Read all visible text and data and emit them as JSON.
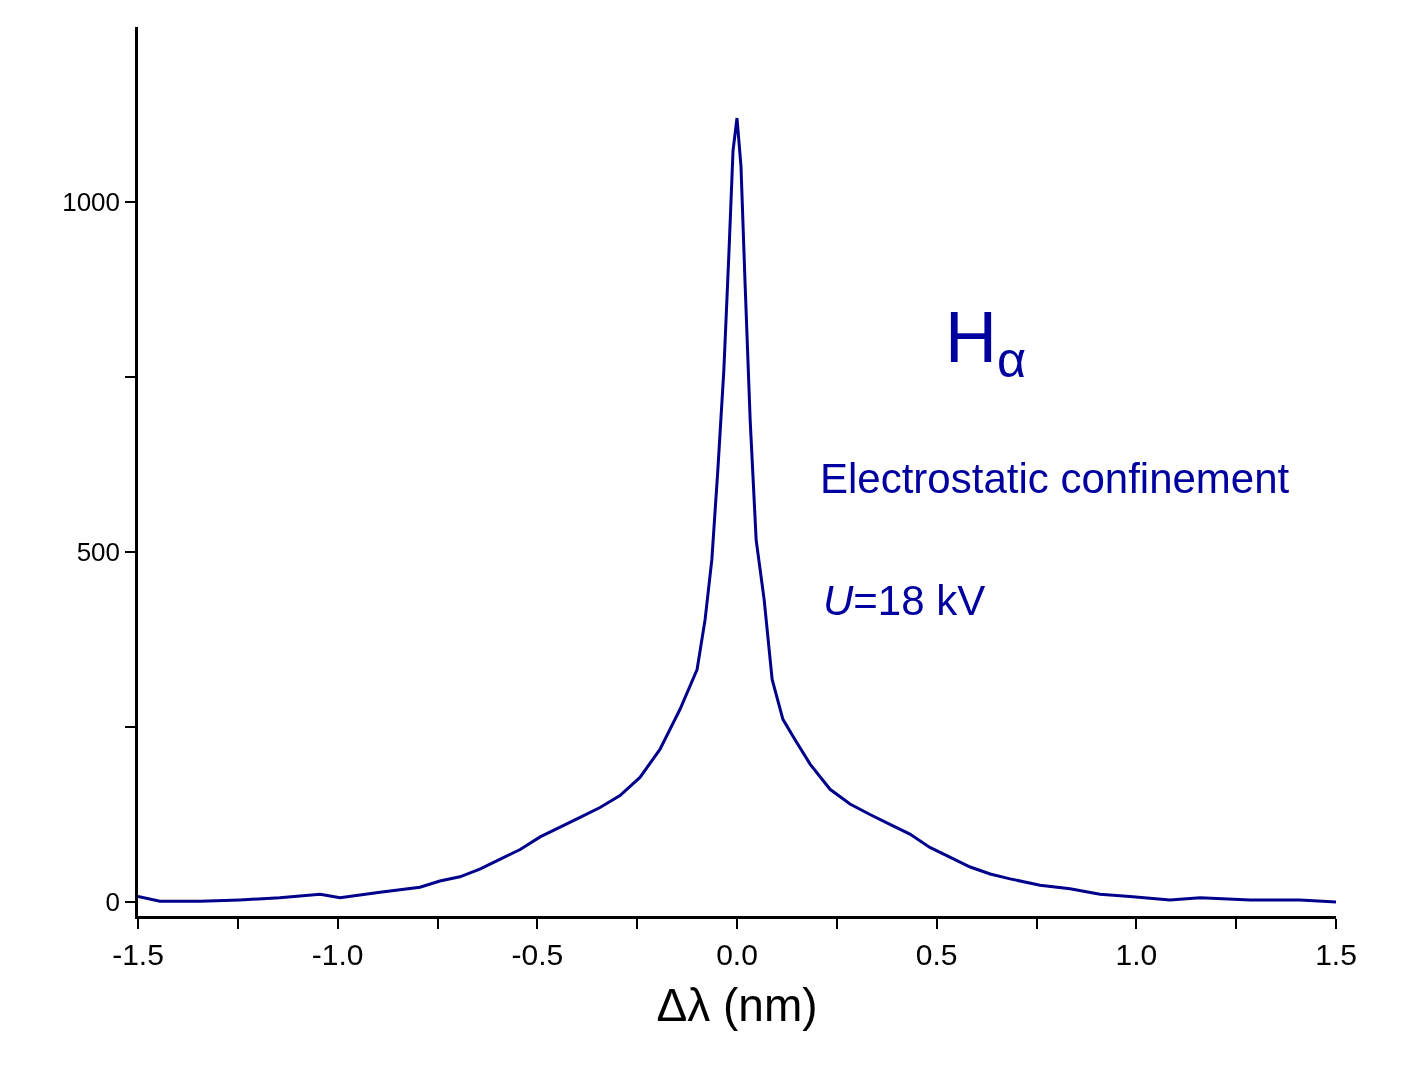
{
  "chart_data": {
    "type": "line",
    "xlabel": "Δλ (nm)",
    "x": [
      -1.5,
      -1.445,
      -1.345,
      -1.245,
      -1.145,
      -1.044,
      -0.994,
      -0.894,
      -0.794,
      -0.744,
      -0.694,
      -0.644,
      -0.594,
      -0.543,
      -0.493,
      -0.443,
      -0.393,
      -0.343,
      -0.293,
      -0.243,
      -0.193,
      -0.143,
      -0.1,
      -0.08,
      -0.063,
      -0.048,
      -0.033,
      -0.02,
      -0.01,
      0,
      0.01,
      0.02,
      0.033,
      0.048,
      0.068,
      0.088,
      0.115,
      0.145,
      0.183,
      0.233,
      0.283,
      0.333,
      0.383,
      0.433,
      0.483,
      0.533,
      0.584,
      0.634,
      0.684,
      0.759,
      0.834,
      0.909,
      0.984,
      1.084,
      1.16,
      1.285,
      1.41,
      1.5
    ],
    "series": [
      {
        "color": "#00008b",
        "values": [
          8,
          1,
          1,
          3,
          6,
          11,
          6,
          14,
          21,
          30,
          36,
          47,
          61,
          75,
          93,
          107,
          121,
          135,
          152,
          178,
          218,
          275,
          332,
          403,
          489,
          617,
          759,
          930,
          1073,
          1120,
          1051,
          887,
          688,
          517,
          432,
          318,
          261,
          232,
          197,
          161,
          140,
          125,
          111,
          97,
          78,
          64,
          50,
          40,
          33,
          24,
          19,
          11,
          8,
          3,
          6,
          3,
          3,
          0
        ]
      }
    ],
    "xlim": [
      -1.5,
      1.5
    ],
    "ylim": [
      -20,
      1250
    ],
    "xticks": [
      -1.5,
      {
        "value": -1.25,
        "label": null
      },
      "-1.0",
      {
        "value": -0.75,
        "label": null
      },
      -0.5,
      {
        "value": -0.25,
        "label": null
      },
      "0.0",
      {
        "value": 0.25,
        "label": null
      },
      0.5,
      {
        "value": 0.75,
        "label": null
      },
      "1.0",
      {
        "value": 1.25,
        "label": null
      },
      1.5
    ],
    "yticks": [
      0,
      {
        "value": 250,
        "label": null
      },
      500,
      {
        "value": 750,
        "label": null
      },
      1000
    ],
    "annotations": [
      "H$_{α}$",
      "Electrostatic confinement",
      "U=18 kV"
    ],
    "marker": "none",
    "line_style": "solid"
  }
}
